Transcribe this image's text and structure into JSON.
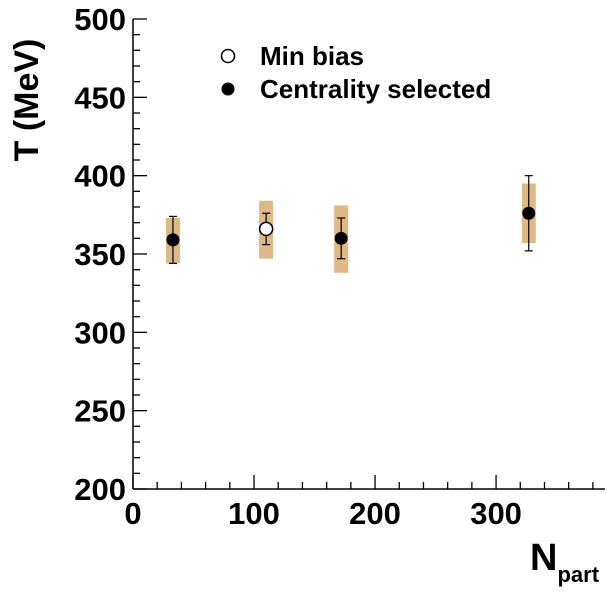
{
  "chart_data": {
    "type": "scatter",
    "title": "",
    "xlabel": "N",
    "xlabel_subscript": "part",
    "ylabel": "T (MeV)",
    "xlim": [
      0,
      390
    ],
    "ylim": [
      200,
      500
    ],
    "x_ticks": [
      0,
      100,
      200,
      300
    ],
    "y_ticks": [
      200,
      250,
      300,
      350,
      400,
      450,
      500
    ],
    "grid": false,
    "legend_position": "top-left",
    "series": [
      {
        "name": "Min bias",
        "marker": "open-circle",
        "points": [
          {
            "x": 110,
            "y": 366,
            "stat_err": 10,
            "sys_low": 347,
            "sys_high": 384
          }
        ]
      },
      {
        "name": "Centrality selected",
        "marker": "filled-circle",
        "points": [
          {
            "x": 33,
            "y": 359,
            "stat_err": 15,
            "sys_low": 344,
            "sys_high": 373
          },
          {
            "x": 172,
            "y": 360,
            "stat_err": 13,
            "sys_low": 338,
            "sys_high": 381
          },
          {
            "x": 327,
            "y": 376,
            "stat_err": 24,
            "sys_low": 357,
            "sys_high": 395
          }
        ]
      }
    ],
    "colors": {
      "systematic_band": "#deb887",
      "marker": "#000000"
    }
  }
}
